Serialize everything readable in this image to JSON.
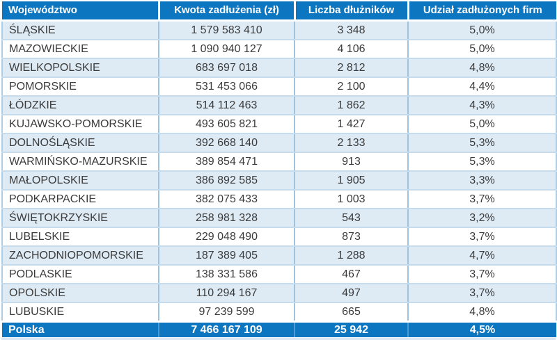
{
  "chart_data": {
    "type": "table",
    "columns": [
      "Województwo",
      "Kwota zadłużenia (zł)",
      "Liczba dłużników",
      "Udział zadłużonych firm"
    ],
    "rows": [
      [
        "ŚLĄSKIE",
        "1 579 583 410",
        "3 348",
        "5,0%"
      ],
      [
        "MAZOWIECKIE",
        "1 090 940 127",
        "4 106",
        "5,0%"
      ],
      [
        "WIELKOPOLSKIE",
        "683 697 018",
        "2 812",
        "4,8%"
      ],
      [
        "POMORSKIE",
        "531 453 066",
        "2 100",
        "4,4%"
      ],
      [
        "ŁÓDZKIE",
        "514 112 463",
        "1 862",
        "4,3%"
      ],
      [
        "KUJAWSKO-POMORSKIE",
        "493 605 821",
        "1 427",
        "5,0%"
      ],
      [
        "DOLNOŚLĄSKIE",
        "392 668 140",
        "2 133",
        "5,3%"
      ],
      [
        "WARMIŃSKO-MAZURSKIE",
        "389 854 471",
        "913",
        "5,3%"
      ],
      [
        "MAŁOPOLSKIE",
        "386 892 585",
        "1 905",
        "3,3%"
      ],
      [
        "PODKARPACKIE",
        "382 075 433",
        "1 003",
        "3,7%"
      ],
      [
        "ŚWIĘTOKRZYSKIE",
        "258 981 328",
        "543",
        "3,2%"
      ],
      [
        "LUBELSKIE",
        "229 048 490",
        "873",
        "3,7%"
      ],
      [
        "ZACHODNIOPOMORSKIE",
        "187 389 405",
        "1 288",
        "4,7%"
      ],
      [
        "PODLASKIE",
        "138 331 586",
        "467",
        "3,7%"
      ],
      [
        "OPOLSKIE",
        "110 294 167",
        "497",
        "3,7%"
      ],
      [
        "LUBUSKIE",
        "97 239 599",
        "665",
        "4,8%"
      ]
    ],
    "footer": [
      "Polska",
      "7 466 167 109",
      "25 942",
      "4,5%"
    ],
    "layout": {
      "grid": true,
      "alternating_rows": true
    }
  },
  "colors": {
    "header_bg": "#0d76c1",
    "footer_bg": "#0d76c1",
    "row_alt_bg": "#deebf5",
    "row_bg": "#ffffff",
    "grid_vertical": "#9fc3df",
    "grid_horizontal": "#c6dcec",
    "header_text": "#ffffff",
    "body_text": "#3b3b3b"
  }
}
